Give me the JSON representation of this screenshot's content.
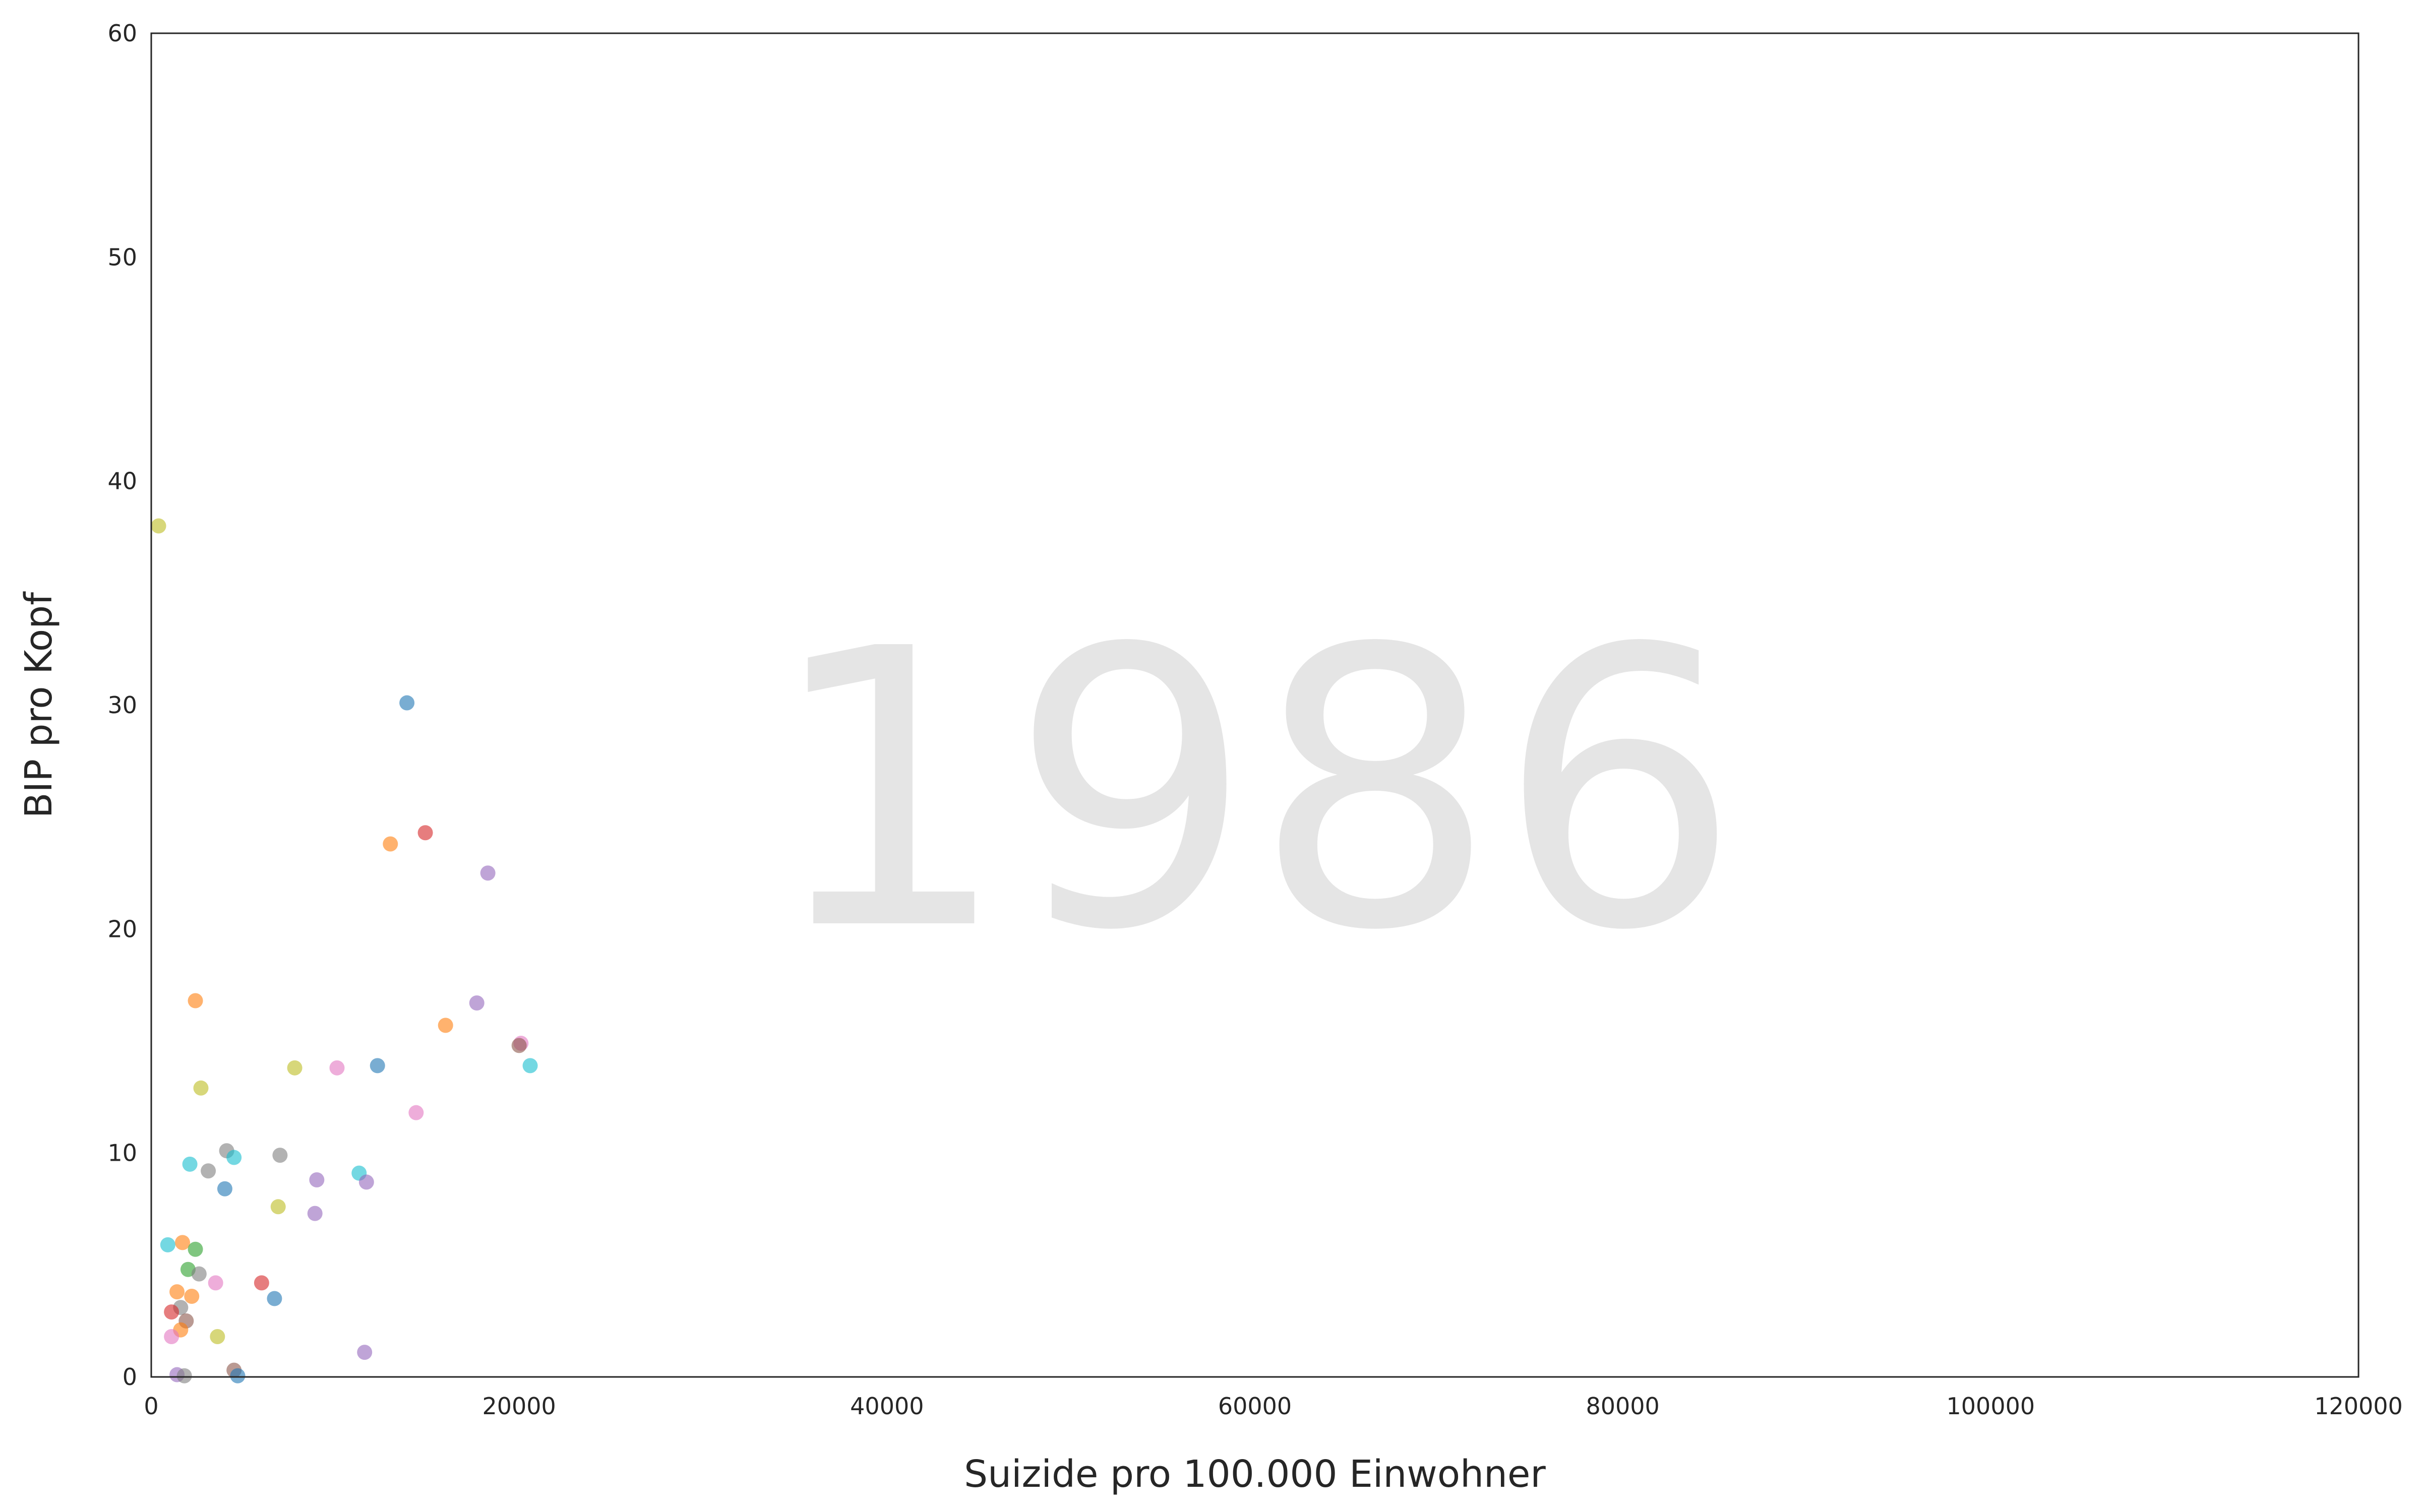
{
  "chart_data": {
    "type": "scatter",
    "title": "",
    "watermark": "1986",
    "xlabel": "Suizide pro 100.000 Einwohner",
    "ylabel": "BIP pro Kopf",
    "xlim": [
      0,
      120000
    ],
    "ylim": [
      0,
      60
    ],
    "xticks": [
      0,
      20000,
      40000,
      60000,
      80000,
      100000,
      120000
    ],
    "yticks": [
      0,
      10,
      20,
      30,
      40,
      50,
      60
    ],
    "grid": false,
    "legend": "none",
    "points": [
      {
        "x": 400,
        "y": 38.0,
        "color": "#bcbd22"
      },
      {
        "x": 13900,
        "y": 30.1,
        "color": "#1f77b4"
      },
      {
        "x": 14900,
        "y": 24.3,
        "color": "#d62728"
      },
      {
        "x": 13000,
        "y": 23.8,
        "color": "#ff7f0e"
      },
      {
        "x": 18300,
        "y": 22.5,
        "color": "#9467bd"
      },
      {
        "x": 2400,
        "y": 16.8,
        "color": "#ff7f0e"
      },
      {
        "x": 17700,
        "y": 16.7,
        "color": "#9467bd"
      },
      {
        "x": 16000,
        "y": 15.7,
        "color": "#ff7f0e"
      },
      {
        "x": 20100,
        "y": 14.9,
        "color": "#e377c2"
      },
      {
        "x": 20000,
        "y": 14.8,
        "color": "#8c564b"
      },
      {
        "x": 20600,
        "y": 13.9,
        "color": "#17becf"
      },
      {
        "x": 12300,
        "y": 13.9,
        "color": "#1f77b4"
      },
      {
        "x": 7800,
        "y": 13.8,
        "color": "#bcbd22"
      },
      {
        "x": 10100,
        "y": 13.8,
        "color": "#e377c2"
      },
      {
        "x": 2700,
        "y": 12.9,
        "color": "#bcbd22"
      },
      {
        "x": 14400,
        "y": 11.8,
        "color": "#e377c2"
      },
      {
        "x": 4100,
        "y": 10.1,
        "color": "#7f7f7f"
      },
      {
        "x": 7000,
        "y": 9.9,
        "color": "#7f7f7f"
      },
      {
        "x": 4500,
        "y": 9.8,
        "color": "#17becf"
      },
      {
        "x": 2100,
        "y": 9.5,
        "color": "#17becf"
      },
      {
        "x": 3100,
        "y": 9.2,
        "color": "#7f7f7f"
      },
      {
        "x": 11300,
        "y": 9.1,
        "color": "#17becf"
      },
      {
        "x": 9000,
        "y": 8.8,
        "color": "#9467bd"
      },
      {
        "x": 11700,
        "y": 8.7,
        "color": "#9467bd"
      },
      {
        "x": 4000,
        "y": 8.4,
        "color": "#1f77b4"
      },
      {
        "x": 6900,
        "y": 7.6,
        "color": "#bcbd22"
      },
      {
        "x": 8900,
        "y": 7.3,
        "color": "#9467bd"
      },
      {
        "x": 1700,
        "y": 6.0,
        "color": "#ff7f0e"
      },
      {
        "x": 900,
        "y": 5.9,
        "color": "#17becf"
      },
      {
        "x": 2400,
        "y": 5.7,
        "color": "#2ca02c"
      },
      {
        "x": 2000,
        "y": 4.8,
        "color": "#2ca02c"
      },
      {
        "x": 2600,
        "y": 4.6,
        "color": "#7f7f7f"
      },
      {
        "x": 3500,
        "y": 4.2,
        "color": "#e377c2"
      },
      {
        "x": 6000,
        "y": 4.2,
        "color": "#d62728"
      },
      {
        "x": 1400,
        "y": 3.8,
        "color": "#ff7f0e"
      },
      {
        "x": 2200,
        "y": 3.6,
        "color": "#ff7f0e"
      },
      {
        "x": 6700,
        "y": 3.5,
        "color": "#1f77b4"
      },
      {
        "x": 1600,
        "y": 3.1,
        "color": "#7f7f7f"
      },
      {
        "x": 1100,
        "y": 2.9,
        "color": "#d62728"
      },
      {
        "x": 1900,
        "y": 2.5,
        "color": "#8c564b"
      },
      {
        "x": 1600,
        "y": 2.1,
        "color": "#ff7f0e"
      },
      {
        "x": 1100,
        "y": 1.8,
        "color": "#e377c2"
      },
      {
        "x": 3600,
        "y": 1.8,
        "color": "#bcbd22"
      },
      {
        "x": 11600,
        "y": 1.1,
        "color": "#9467bd"
      },
      {
        "x": 4500,
        "y": 0.3,
        "color": "#8c564b"
      },
      {
        "x": 1400,
        "y": 0.1,
        "color": "#9467bd"
      },
      {
        "x": 1800,
        "y": 0.05,
        "color": "#7f7f7f"
      },
      {
        "x": 4700,
        "y": 0.05,
        "color": "#1f77b4"
      }
    ]
  }
}
